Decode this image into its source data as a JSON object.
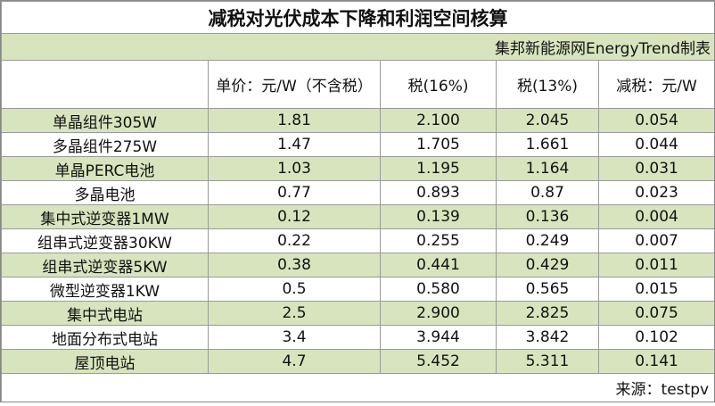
{
  "header": {
    "title": "减税对光伏成本下降和利润空间核算",
    "subtitle": "集邦新能源网EnergyTrend制表"
  },
  "table": {
    "columns": [
      "",
      "单价：元/W（不含税）",
      "税(16%)",
      "税(13%)",
      "减税：元/W"
    ],
    "rows": [
      [
        "单晶组件305W",
        "1.81",
        "2.100",
        "2.045",
        "0.054"
      ],
      [
        "多晶组件275W",
        "1.47",
        "1.705",
        "1.661",
        "0.044"
      ],
      [
        "单晶PERC电池",
        "1.03",
        "1.195",
        "1.164",
        "0.031"
      ],
      [
        "多晶电池",
        "0.77",
        "0.893",
        "0.87",
        "0.023"
      ],
      [
        "集中式逆变器1MW",
        "0.12",
        "0.139",
        "0.136",
        "0.004"
      ],
      [
        "组串式逆变器30KW",
        "0.22",
        "0.255",
        "0.249",
        "0.007"
      ],
      [
        "组串式逆变器5KW",
        "0.38",
        "0.441",
        "0.429",
        "0.011"
      ],
      [
        "微型逆变器1KW",
        "0.5",
        "0.580",
        "0.565",
        "0.015"
      ],
      [
        "集中式电站",
        "2.5",
        "2.900",
        "2.825",
        "0.075"
      ],
      [
        "地面分布式电站",
        "3.4",
        "3.944",
        "3.842",
        "0.102"
      ],
      [
        "屋顶电站",
        "4.7",
        "5.452",
        "5.311",
        "0.141"
      ]
    ]
  },
  "footer": {
    "source": "来源：testpv"
  }
}
